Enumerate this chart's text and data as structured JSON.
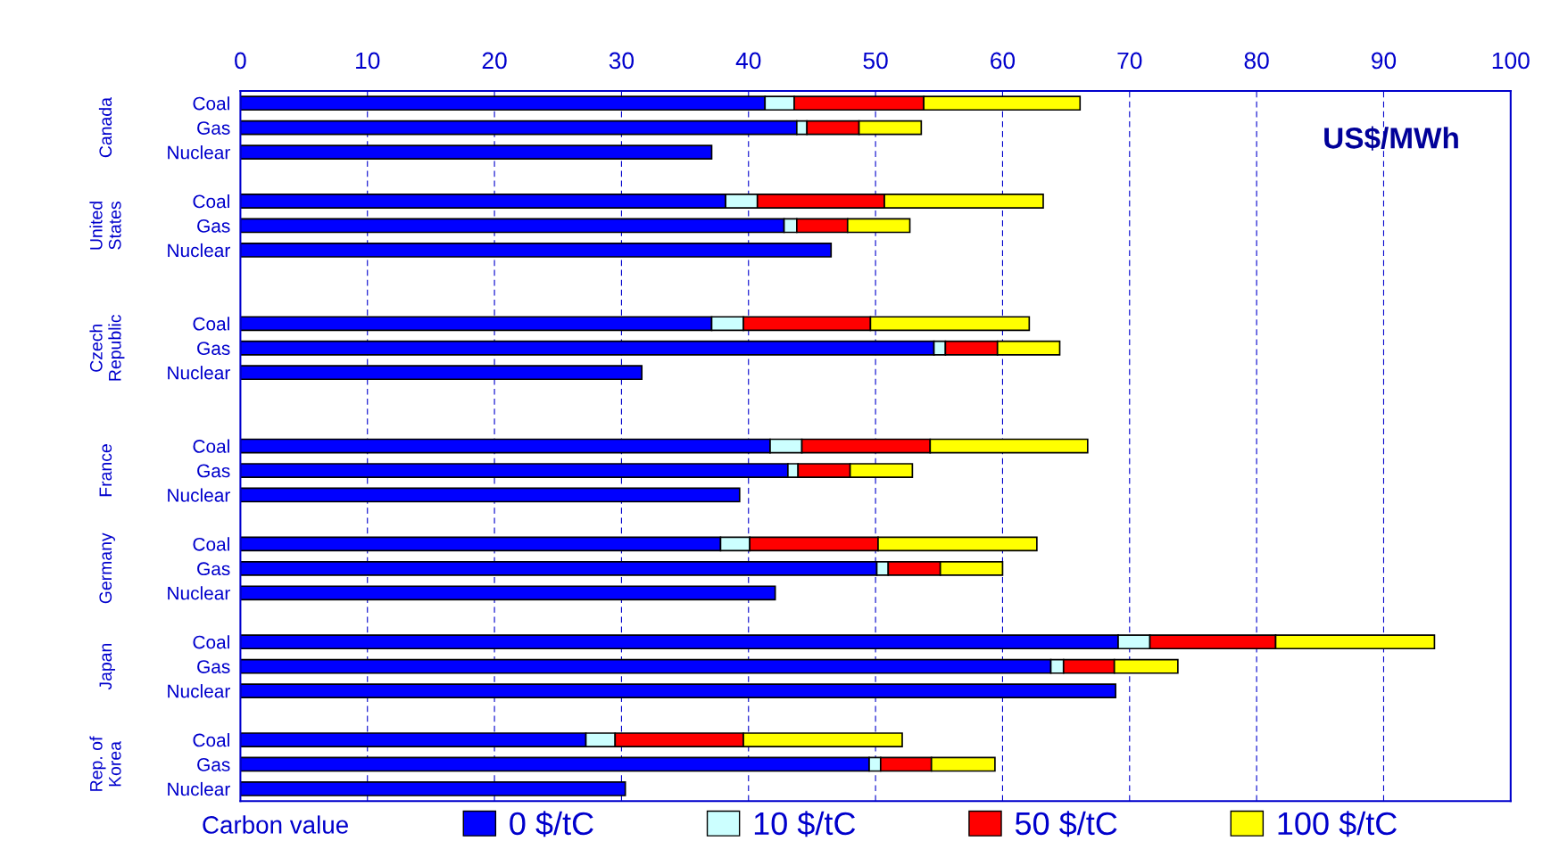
{
  "chart_data": {
    "type": "bar",
    "orientation": "horizontal",
    "stacked": true,
    "categories": [
      "Coal",
      "Gas",
      "Nuclear",
      null,
      "Coal",
      "Gas",
      "Nuclear",
      null,
      null,
      "Coal",
      "Gas",
      "Nuclear",
      null,
      null,
      "Coal",
      "Gas",
      "Nuclear",
      null,
      "Coal",
      "Gas",
      "Nuclear",
      null,
      "Coal",
      "Gas",
      "Nuclear",
      null,
      "Coal",
      "Gas",
      "Nuclear"
    ],
    "series": [
      {
        "name": "0 $/tC",
        "color": "#0000ff",
        "values": [
          41.3,
          43.8,
          37.1,
          null,
          38.2,
          42.8,
          46.5,
          null,
          null,
          37.1,
          54.6,
          31.6,
          null,
          null,
          41.7,
          43.1,
          39.3,
          null,
          37.8,
          50.1,
          42.1,
          null,
          69.1,
          63.8,
          68.9,
          null,
          27.2,
          49.5,
          30.3
        ]
      },
      {
        "name": "10 $/tC",
        "color": "#ccffff",
        "values": [
          2.3,
          0.8,
          null,
          null,
          2.5,
          1.0,
          null,
          null,
          null,
          2.5,
          0.9,
          null,
          null,
          null,
          2.5,
          0.8,
          null,
          null,
          2.3,
          0.9,
          null,
          null,
          2.5,
          1.0,
          null,
          null,
          2.3,
          0.9,
          null
        ]
      },
      {
        "name": "50 $/tC",
        "color": "#ff0000",
        "values": [
          10.2,
          4.1,
          null,
          null,
          10.0,
          4.0,
          null,
          null,
          null,
          10.0,
          4.1,
          null,
          null,
          null,
          10.1,
          4.1,
          null,
          null,
          10.1,
          4.1,
          null,
          null,
          9.9,
          4.0,
          null,
          null,
          10.1,
          4.0,
          null
        ]
      },
      {
        "name": "100 $/tC",
        "color": "#ffff00",
        "values": [
          12.3,
          4.9,
          null,
          null,
          12.5,
          4.9,
          null,
          null,
          null,
          12.5,
          4.9,
          null,
          null,
          null,
          12.4,
          4.9,
          null,
          null,
          12.5,
          4.9,
          null,
          null,
          12.5,
          5.0,
          null,
          null,
          12.5,
          5.0,
          null
        ]
      }
    ],
    "xlim": [
      0,
      100
    ],
    "xticks": [
      0,
      10,
      20,
      30,
      40,
      50,
      60,
      70,
      80,
      90,
      100
    ],
    "grid": "x",
    "legend": "bottom",
    "legend_title": "Carbon value",
    "annotations": [
      "Canada",
      "United\nStates",
      "Czech\nRepublic",
      "France",
      "Germany",
      "Japan",
      "Rep. of\nKorea",
      "US$/MWh"
    ]
  }
}
